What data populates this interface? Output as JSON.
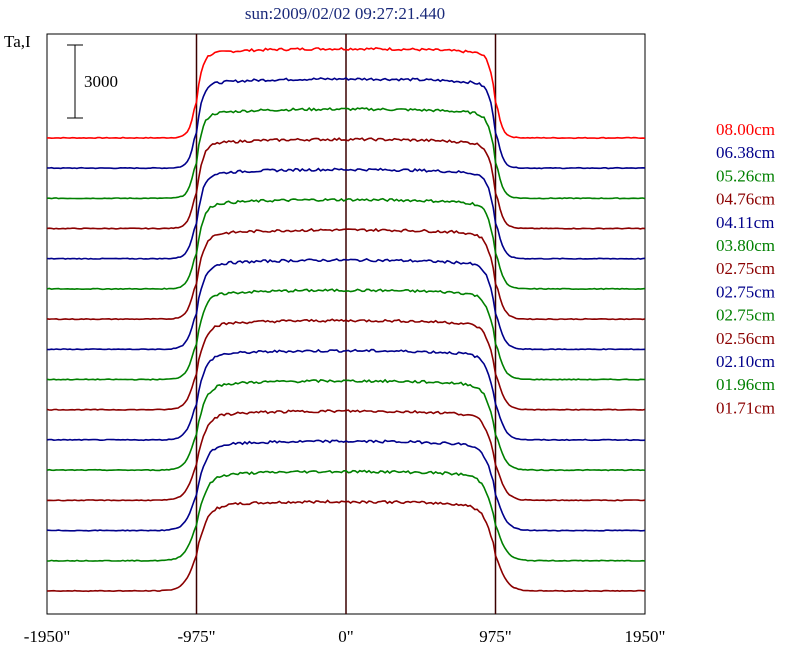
{
  "chart_data": {
    "type": "line",
    "title": "sun:2009/02/02 09:27:21.440",
    "ylabel": "Ta,I",
    "xlabel": "",
    "scale_bar_label": "3000",
    "xlim": [
      -1950,
      1950
    ],
    "x_ticks": [
      {
        "value": -1950,
        "label": "-1950\""
      },
      {
        "value": -975,
        "label": "-975\""
      },
      {
        "value": 0,
        "label": "0\""
      },
      {
        "value": 975,
        "label": "975\""
      },
      {
        "value": 1950,
        "label": "1950\""
      }
    ],
    "vertical_lines": [
      -975,
      0,
      975
    ],
    "disk_radius": 975,
    "grid": false,
    "legend_position": "right",
    "series": [
      {
        "name": "08.00cm",
        "color": "#ff0000",
        "level": 31,
        "amplitude": 12.3
      },
      {
        "name": "06.38cm",
        "color": "#00008b",
        "level": 29,
        "amplitude": 12.3
      },
      {
        "name": "05.26cm",
        "color": "#008000",
        "level": 27,
        "amplitude": 12.3
      },
      {
        "name": "04.76cm",
        "color": "#8b0000",
        "level": 25,
        "amplitude": 12.3
      },
      {
        "name": "04.11cm",
        "color": "#00008b",
        "level": 23,
        "amplitude": 12.3
      },
      {
        "name": "03.80cm",
        "color": "#008000",
        "level": 21,
        "amplitude": 12.3
      },
      {
        "name": "02.75cm",
        "color": "#8b0000",
        "level": 19,
        "amplitude": 12.3
      },
      {
        "name": "02.75cm",
        "color": "#00008b",
        "level": 17,
        "amplitude": 12.3
      },
      {
        "name": "02.75cm",
        "color": "#008000",
        "level": 15,
        "amplitude": 12.3
      },
      {
        "name": "02.56cm",
        "color": "#8b0000",
        "level": 13,
        "amplitude": 12.3
      },
      {
        "name": "02.10cm",
        "color": "#00008b",
        "level": 11,
        "amplitude": 12.3
      },
      {
        "name": "01.96cm",
        "color": "#008000",
        "level": 9,
        "amplitude": 12.3
      },
      {
        "name": "01.71cm",
        "color": "#8b0000",
        "level": 7,
        "amplitude": 12.3
      },
      {
        "name": "",
        "color": "#00008b",
        "level": 5,
        "amplitude": 12.3
      },
      {
        "name": "",
        "color": "#008000",
        "level": 3,
        "amplitude": 12.3
      },
      {
        "name": "",
        "color": "#8b0000",
        "level": 1,
        "amplitude": 12.3
      }
    ]
  }
}
